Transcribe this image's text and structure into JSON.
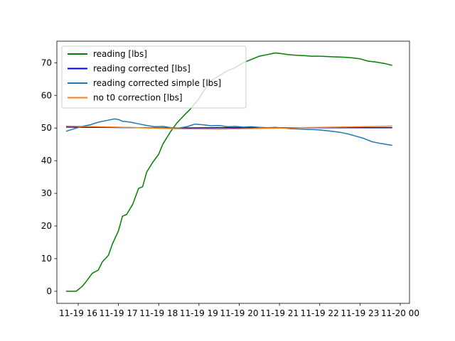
{
  "chart_data": {
    "type": "line",
    "title": "",
    "xlabel": "",
    "ylabel": "",
    "xlim": [
      15.47,
      24.23
    ],
    "ylim": [
      -3.7,
      76.6
    ],
    "grid": false,
    "legend_position": "top-left",
    "x_ticks": [
      {
        "value": 16,
        "label": "11-19 16"
      },
      {
        "value": 17,
        "label": "11-19 17"
      },
      {
        "value": 18,
        "label": "11-19 18"
      },
      {
        "value": 19,
        "label": "11-19 19"
      },
      {
        "value": 20,
        "label": "11-19 20"
      },
      {
        "value": 21,
        "label": "11-19 21"
      },
      {
        "value": 22,
        "label": "11-19 22"
      },
      {
        "value": 23,
        "label": "11-19 23"
      },
      {
        "value": 24,
        "label": "11-20 00"
      }
    ],
    "y_ticks": [
      0,
      10,
      20,
      30,
      40,
      50,
      60,
      70
    ],
    "series": [
      {
        "name": "reading [lbs]",
        "color": "#008000",
        "x": [
          15.7,
          15.95,
          16.1,
          16.2,
          16.35,
          16.5,
          16.6,
          16.75,
          16.85,
          17.0,
          17.1,
          17.2,
          17.35,
          17.5,
          17.6,
          17.7,
          17.85,
          18.0,
          18.1,
          18.3,
          18.45,
          18.6,
          18.8,
          19.0,
          19.1,
          19.3,
          19.5,
          19.7,
          19.9,
          20.1,
          20.3,
          20.5,
          20.7,
          20.9,
          21.05,
          21.2,
          21.4,
          21.6,
          21.8,
          22.0,
          22.2,
          22.4,
          22.6,
          22.8,
          23.0,
          23.2,
          23.4,
          23.6,
          23.8
        ],
        "values": [
          0,
          0,
          1.5,
          3,
          5.5,
          6.5,
          9,
          11,
          14.5,
          18.5,
          23,
          23.5,
          26.5,
          31.5,
          32,
          36.5,
          39.5,
          42,
          45,
          49,
          51.5,
          53.5,
          56,
          59,
          61,
          64.5,
          66,
          67.5,
          68.5,
          70,
          71,
          72,
          72.5,
          73,
          72.8,
          72.5,
          72.3,
          72.2,
          72,
          72,
          71.9,
          71.8,
          71.7,
          71.5,
          71.2,
          70.5,
          70.2,
          69.8,
          69.2
        ]
      },
      {
        "name": "reading corrected [lbs]",
        "color": "#0000cc",
        "x": [
          15.7,
          16.5,
          17.5,
          18.5,
          19.5,
          20.5,
          21.5,
          22.5,
          23.5,
          23.8
        ],
        "values": [
          50.3,
          50.2,
          50.1,
          50.0,
          50.1,
          50.1,
          50.1,
          50.1,
          50.1,
          50.1
        ]
      },
      {
        "name": "reading corrected simple [lbs]",
        "color": "#1f77b4",
        "x": [
          15.7,
          15.9,
          16.1,
          16.3,
          16.5,
          16.7,
          16.9,
          17.0,
          17.1,
          17.3,
          17.5,
          17.7,
          17.9,
          18.1,
          18.3,
          18.5,
          18.7,
          18.9,
          19.1,
          19.3,
          19.5,
          19.7,
          19.9,
          20.1,
          20.3,
          20.5,
          20.7,
          20.9,
          21.1,
          21.3,
          21.5,
          21.7,
          21.9,
          22.1,
          22.3,
          22.5,
          22.7,
          22.9,
          23.1,
          23.3,
          23.5,
          23.8
        ],
        "values": [
          49.0,
          49.8,
          50.5,
          51.0,
          51.8,
          52.3,
          52.8,
          52.6,
          52.1,
          51.8,
          51.3,
          50.8,
          50.4,
          50.5,
          50.1,
          50.0,
          50.4,
          51.2,
          51.0,
          50.7,
          50.8,
          50.4,
          50.5,
          50.3,
          50.4,
          50.2,
          50.1,
          50.2,
          50.0,
          49.8,
          49.7,
          49.6,
          49.5,
          49.3,
          49.0,
          48.7,
          48.2,
          47.5,
          46.8,
          45.8,
          45.3,
          44.7
        ]
      },
      {
        "name": "no t0 correction [lbs]",
        "color": "#ff7f0e",
        "x": [
          15.7,
          16.5,
          17.5,
          18.5,
          19.5,
          20.5,
          21.5,
          22.5,
          23.5,
          23.8
        ],
        "values": [
          50.6,
          50.4,
          50.1,
          49.8,
          49.7,
          49.9,
          50.1,
          50.3,
          50.5,
          50.6
        ]
      }
    ]
  }
}
